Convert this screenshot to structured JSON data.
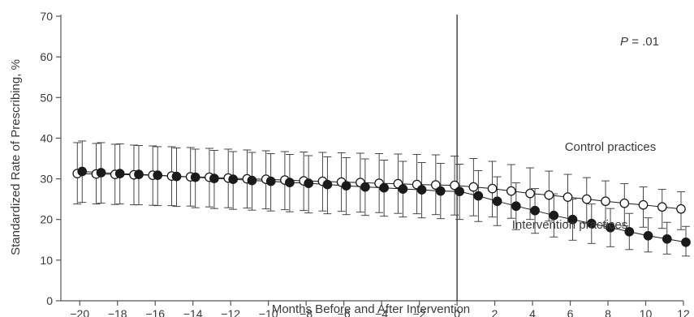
{
  "chart_data": {
    "type": "line",
    "title": "",
    "xlabel": "Months Before and After Intervention",
    "ylabel": "Standardized Rate of Prescribing, %",
    "xlim": [
      -21,
      12
    ],
    "ylim": [
      0,
      70
    ],
    "x_ticks": [
      -20,
      -18,
      -16,
      -14,
      -12,
      -10,
      -8,
      -6,
      -4,
      -2,
      0,
      2,
      4,
      6,
      8,
      10,
      12
    ],
    "x_tick_labels": [
      "−20",
      "−18",
      "−16",
      "−14",
      "−12",
      "−10",
      "−8",
      "−6",
      "−4",
      "−2",
      "0",
      "2",
      "4",
      "6",
      "8",
      "10",
      "12"
    ],
    "y_ticks": [
      0,
      10,
      20,
      30,
      40,
      50,
      60,
      70
    ],
    "y_tick_labels": [
      "0",
      "10",
      "20",
      "30",
      "40",
      "50",
      "60",
      "70"
    ],
    "grid": false,
    "intervention_line_x": 0,
    "annotation": {
      "p_label": "P",
      "p_value": " = .01"
    },
    "x": [
      -20,
      -19,
      -18,
      -17,
      -16,
      -15,
      -14,
      -13,
      -12,
      -11,
      -10,
      -9,
      -8,
      -7,
      -6,
      -5,
      -4,
      -3,
      -2,
      -1,
      0,
      1,
      2,
      3,
      4,
      5,
      6,
      7,
      8,
      9,
      10,
      11,
      12
    ],
    "series": [
      {
        "name": "Control practices",
        "marker": "open-circle",
        "values": [
          31.3,
          31.2,
          31.1,
          31.0,
          30.9,
          30.7,
          30.5,
          30.4,
          30.2,
          30.0,
          29.9,
          29.7,
          29.5,
          29.4,
          29.2,
          29.1,
          28.9,
          28.8,
          28.6,
          28.5,
          28.4,
          28.0,
          27.6,
          27.0,
          26.4,
          26.0,
          25.5,
          25.0,
          24.5,
          24.0,
          23.6,
          23.1,
          22.6
        ],
        "error_lower": [
          23.8,
          23.8,
          23.7,
          23.6,
          23.5,
          23.4,
          23.3,
          23.1,
          22.9,
          22.8,
          22.6,
          22.4,
          22.2,
          22.1,
          22.0,
          21.8,
          21.7,
          21.5,
          21.4,
          21.2,
          21.1,
          20.9,
          20.6,
          20.3,
          20.0,
          19.6,
          19.3,
          19.0,
          18.7,
          18.4,
          18.1,
          17.8,
          17.5
        ],
        "error_upper": [
          38.9,
          38.7,
          38.5,
          38.3,
          38.1,
          37.9,
          37.7,
          37.5,
          37.3,
          37.1,
          36.9,
          36.7,
          36.6,
          36.5,
          36.4,
          36.3,
          36.2,
          36.1,
          36.0,
          35.9,
          35.6,
          35.0,
          34.3,
          33.5,
          32.7,
          31.9,
          31.1,
          30.3,
          29.5,
          28.8,
          28.0,
          27.4,
          26.8
        ]
      },
      {
        "name": "Intervention practices",
        "marker": "filled-circle",
        "values": [
          31.8,
          31.5,
          31.3,
          31.1,
          30.9,
          30.6,
          30.4,
          30.1,
          29.9,
          29.6,
          29.4,
          29.1,
          28.9,
          28.6,
          28.3,
          28.0,
          27.8,
          27.5,
          27.3,
          27.0,
          26.9,
          25.8,
          24.5,
          23.3,
          22.2,
          21.0,
          20.0,
          19.0,
          18.0,
          17.0,
          16.0,
          15.2,
          14.4
        ],
        "error_lower": [
          24.2,
          24.0,
          23.8,
          23.6,
          23.4,
          23.2,
          22.9,
          22.7,
          22.5,
          22.3,
          22.1,
          21.9,
          21.6,
          21.4,
          21.2,
          21.0,
          20.8,
          20.6,
          20.4,
          20.2,
          20.0,
          19.5,
          18.5,
          17.5,
          16.6,
          15.7,
          14.9,
          14.1,
          13.3,
          12.6,
          12.0,
          11.5,
          11.0
        ],
        "error_upper": [
          39.3,
          38.9,
          38.6,
          38.2,
          37.9,
          37.6,
          37.3,
          37.0,
          36.7,
          36.5,
          36.2,
          36.0,
          35.7,
          35.4,
          35.2,
          34.9,
          34.6,
          34.3,
          34.0,
          33.8,
          33.6,
          32.0,
          30.5,
          29.0,
          27.6,
          26.3,
          25.0,
          23.8,
          22.7,
          21.5,
          20.4,
          19.3,
          18.3
        ]
      }
    ],
    "series_labels": [
      {
        "series": 0,
        "text": "Control practices"
      },
      {
        "series": 1,
        "text": "Intervention practices"
      }
    ]
  }
}
